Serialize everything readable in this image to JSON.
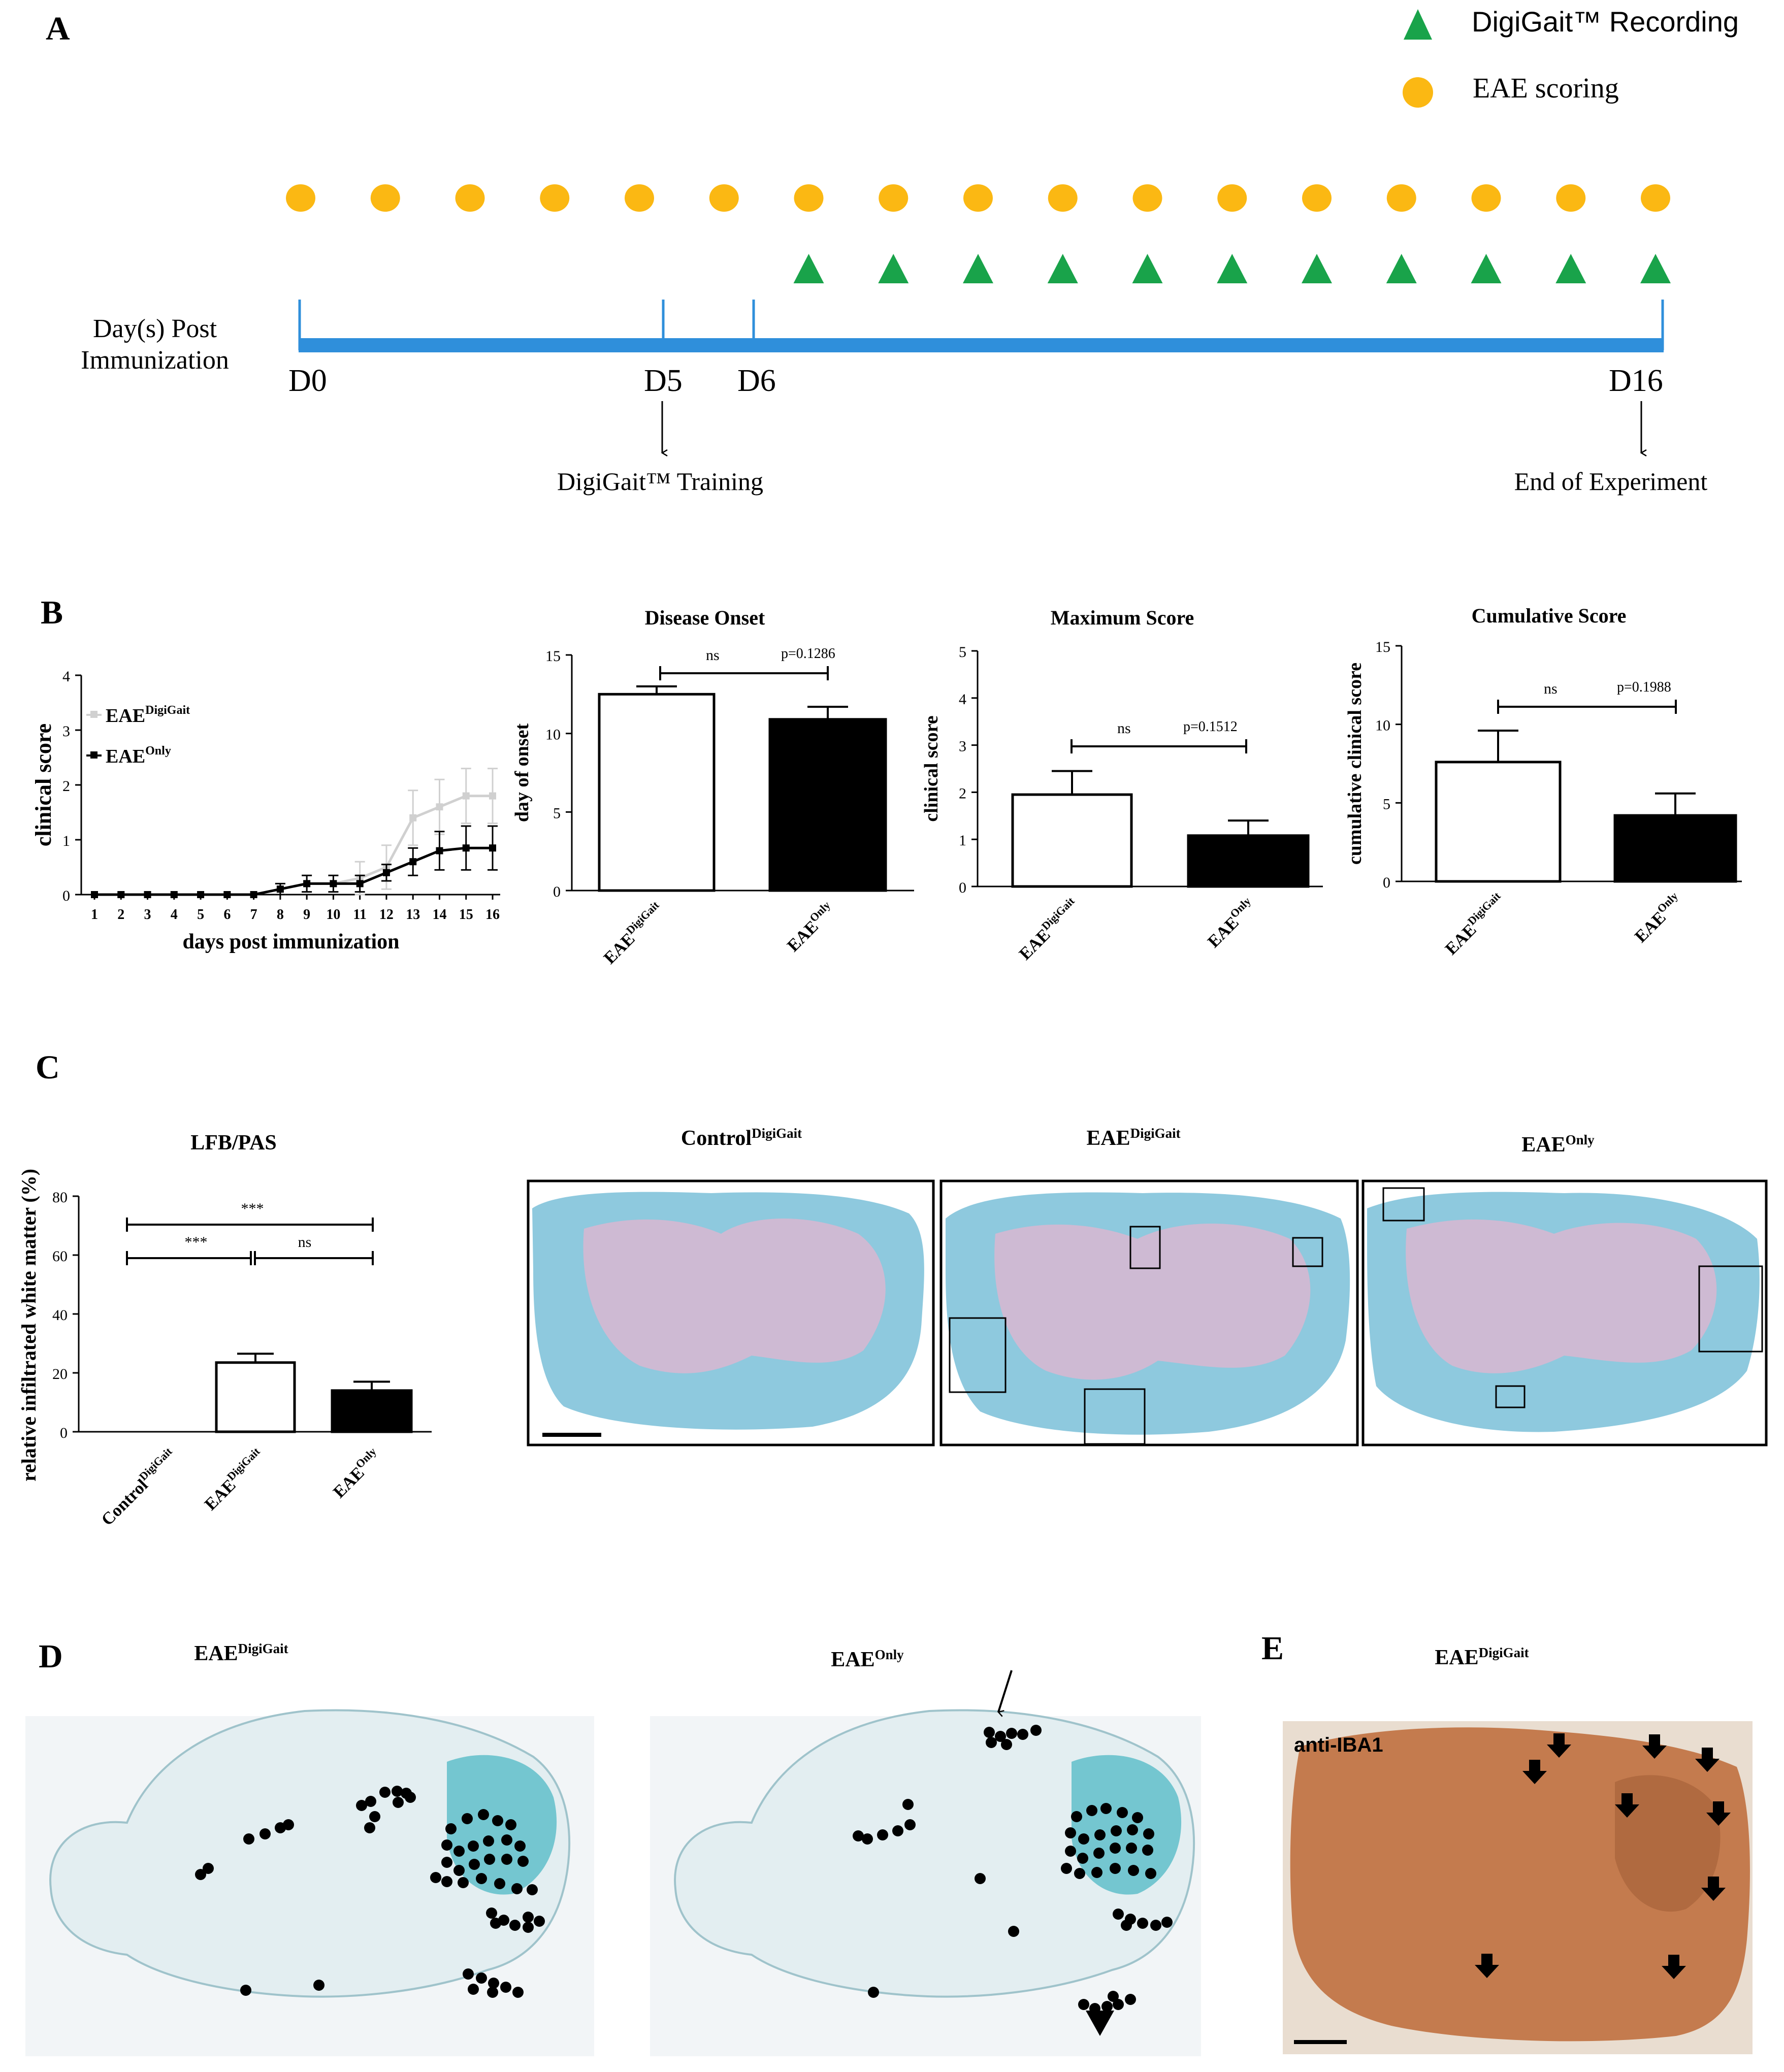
{
  "colors": {
    "orange_dot": "#fbb813",
    "green_triangle": "#19a34a",
    "timeline_blue": "#2f8fdb",
    "lfb_blue": "#8ec9de",
    "lfb_pink": "#e3b4cf",
    "brain_teal": "#1aa6b4",
    "iba1_brown": "#c47b4e"
  },
  "panelA": {
    "label": "A",
    "legend": {
      "recording": "DigiGait™ Recording",
      "scoring": "EAE scoring"
    },
    "axis_label_line1": "Day(s) Post",
    "axis_label_line2": "Immunization",
    "day_markers": [
      "D0",
      "D5",
      "D6",
      "D16"
    ],
    "training_label": "DigiGait™ Training",
    "end_label": "End of Experiment",
    "scoring_days": [
      0,
      1,
      2,
      3,
      4,
      5,
      6,
      7,
      8,
      9,
      10,
      11,
      12,
      13,
      14,
      15,
      16
    ],
    "recording_days": [
      6,
      7,
      8,
      9,
      10,
      11,
      12,
      13,
      14,
      15,
      16
    ]
  },
  "panelB": {
    "label": "B",
    "line_chart": {
      "ylabel": "clinical score",
      "xlabel": "days post immunization",
      "legend": [
        {
          "base": "EAE",
          "sup": "DigiGait"
        },
        {
          "base": "EAE",
          "sup": "Only"
        }
      ],
      "yticks": [
        "0",
        "1",
        "2",
        "3",
        "4"
      ],
      "xticks": [
        "1",
        "2",
        "3",
        "4",
        "5",
        "6",
        "7",
        "8",
        "9",
        "10",
        "11",
        "12",
        "13",
        "14",
        "15",
        "16"
      ]
    },
    "onset": {
      "title": "Disease Onset",
      "ylabel": "day of onset",
      "yticks": [
        "0",
        "5",
        "10",
        "15"
      ],
      "sig": "ns",
      "p": "p=0.1286",
      "groups": [
        {
          "base": "EAE",
          "sup": "DigiGait"
        },
        {
          "base": "EAE",
          "sup": "Only"
        }
      ]
    },
    "max": {
      "title": "Maximum Score",
      "ylabel": "clinical score",
      "yticks": [
        "0",
        "1",
        "2",
        "3",
        "4",
        "5"
      ],
      "sig": "ns",
      "p": "p=0.1512",
      "groups": [
        {
          "base": "EAE",
          "sup": "DigiGait"
        },
        {
          "base": "EAE",
          "sup": "Only"
        }
      ]
    },
    "cumulative": {
      "title": "Cumulative Score",
      "ylabel": "cumulative clinical score",
      "yticks": [
        "0",
        "5",
        "10",
        "15"
      ],
      "sig": "ns",
      "p": "p=0.1988",
      "groups": [
        {
          "base": "EAE",
          "sup": "DigiGait"
        },
        {
          "base": "EAE",
          "sup": "Only"
        }
      ]
    }
  },
  "panelC": {
    "label": "C",
    "chart_title": "LFB/PAS",
    "ylabel": "relative infiltrated white matter (%)",
    "yticks": [
      "0",
      "20",
      "40",
      "60",
      "80"
    ],
    "sig_top": "***",
    "sig_left": "***",
    "sig_right": "ns",
    "groups": [
      {
        "base": "Control",
        "sup": "DigiGait"
      },
      {
        "base": "EAE",
        "sup": "DigiGait"
      },
      {
        "base": "EAE",
        "sup": "Only"
      }
    ],
    "image_titles": [
      {
        "base": "Control",
        "sup": "DigiGait"
      },
      {
        "base": "EAE",
        "sup": "DigiGait"
      },
      {
        "base": "EAE",
        "sup": "Only"
      }
    ]
  },
  "panelD": {
    "label": "D",
    "titles": [
      {
        "base": "EAE",
        "sup": "DigiGait"
      },
      {
        "base": "EAE",
        "sup": "Only"
      }
    ]
  },
  "panelE": {
    "label": "E",
    "title": {
      "base": "EAE",
      "sup": "DigiGait"
    },
    "stain_label": "anti-IBA1"
  },
  "chart_data": [
    {
      "type": "line",
      "title": "",
      "xlabel": "days post immunization",
      "ylabel": "clinical score",
      "ylim": [
        0,
        4
      ],
      "x": [
        1,
        2,
        3,
        4,
        5,
        6,
        7,
        8,
        9,
        10,
        11,
        12,
        13,
        14,
        15,
        16
      ],
      "series": [
        {
          "name": "EAE DigiGait",
          "values": [
            0,
            0,
            0,
            0,
            0,
            0,
            0,
            0.1,
            0.2,
            0.2,
            0.3,
            0.5,
            1.4,
            1.6,
            1.8,
            1.8
          ],
          "errors": [
            0,
            0,
            0,
            0,
            0,
            0,
            0,
            0.1,
            0.15,
            0.15,
            0.3,
            0.4,
            0.5,
            0.5,
            0.5,
            0.5
          ]
        },
        {
          "name": "EAE Only",
          "values": [
            0,
            0,
            0,
            0,
            0,
            0,
            0,
            0.1,
            0.2,
            0.2,
            0.2,
            0.4,
            0.6,
            0.8,
            0.85,
            0.85
          ],
          "errors": [
            0,
            0,
            0,
            0,
            0,
            0,
            0,
            0.1,
            0.15,
            0.15,
            0.15,
            0.15,
            0.25,
            0.35,
            0.4,
            0.4
          ]
        }
      ]
    },
    {
      "type": "bar",
      "title": "Disease Onset",
      "ylabel": "day of onset",
      "ylim": [
        0,
        15
      ],
      "categories": [
        "EAE DigiGait",
        "EAE Only"
      ],
      "values": [
        12.5,
        10.9
      ],
      "errors": [
        0.5,
        0.8
      ]
    },
    {
      "type": "bar",
      "title": "Maximum Score",
      "ylabel": "clinical score",
      "ylim": [
        0,
        5
      ],
      "categories": [
        "EAE DigiGait",
        "EAE Only"
      ],
      "values": [
        1.95,
        1.08
      ],
      "errors": [
        0.5,
        0.32
      ]
    },
    {
      "type": "bar",
      "title": "Cumulative Score",
      "ylabel": "cumulative clinical score",
      "ylim": [
        0,
        15
      ],
      "categories": [
        "EAE DigiGait",
        "EAE Only"
      ],
      "values": [
        7.6,
        4.2
      ],
      "errors": [
        2.0,
        1.4
      ]
    },
    {
      "type": "bar",
      "title": "LFB/PAS",
      "ylabel": "relative infiltrated white matter (%)",
      "ylim": [
        0,
        80
      ],
      "categories": [
        "Control DigiGait",
        "EAE DigiGait",
        "EAE Only"
      ],
      "values": [
        0,
        23.5,
        14
      ],
      "errors": [
        0,
        3,
        3
      ]
    }
  ]
}
